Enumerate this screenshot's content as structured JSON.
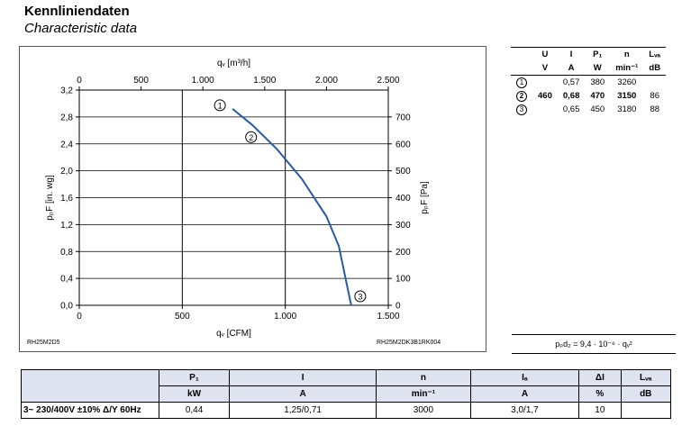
{
  "header": {
    "title": "Kennliniendaten",
    "subtitle": "Characteristic data"
  },
  "chart_data": {
    "type": "line",
    "x_bottom": {
      "label": "qᵥ [CFM]",
      "ticks": [
        "0",
        "500",
        "1.000",
        "1.500"
      ],
      "range": [
        0,
        1500
      ]
    },
    "x_top": {
      "label": "qᵥ [m³/h]",
      "ticks": [
        "0",
        "500",
        "1.000",
        "1.500",
        "2.000",
        "2.500"
      ],
      "range": [
        0,
        2500
      ]
    },
    "y_left": {
      "label": "pₚF [in. wg]",
      "ticks": [
        "0,0",
        "0,4",
        "0,8",
        "1,2",
        "1,6",
        "2,0",
        "2,4",
        "2,8",
        "3,2"
      ],
      "range": [
        0,
        3.2
      ]
    },
    "y_right": {
      "label": "pₚF [Pa]",
      "ticks": [
        "0",
        "100",
        "200",
        "300",
        "400",
        "500",
        "600",
        "700"
      ],
      "range": [
        0,
        800
      ]
    },
    "curve_pa_vs_m3h": [
      [
        1240,
        730
      ],
      [
        1400,
        670
      ],
      [
        1600,
        580
      ],
      [
        1800,
        470
      ],
      [
        2000,
        330
      ],
      [
        2100,
        220
      ],
      [
        2200,
        0
      ]
    ],
    "points": [
      {
        "label": "1",
        "x": 1240,
        "y": 730
      },
      {
        "label": "2",
        "x": 1390,
        "y": 625
      },
      {
        "label": "3",
        "x": 2200,
        "y": 0
      }
    ],
    "grid": true,
    "series_color": "#2a5aa0"
  },
  "codes": {
    "left": "RH25M2D5",
    "right": "RH25M2DK3B1RK004"
  },
  "op_table": {
    "headers": [
      "",
      "U",
      "I",
      "P₁",
      "n",
      "Lᵥₐ"
    ],
    "units": [
      "",
      "V",
      "A",
      "W",
      "min⁻¹",
      "dB"
    ],
    "rows": [
      {
        "point": "1",
        "U": "",
        "I": "0,57",
        "P": "380",
        "n": "3260",
        "L": ""
      },
      {
        "point": "2",
        "U": "460",
        "I": "0,68",
        "P": "470",
        "n": "3150",
        "L": "86"
      },
      {
        "point": "3",
        "U": "",
        "I": "0,65",
        "P": "450",
        "n": "3180",
        "L": "88"
      }
    ]
  },
  "formula": "pₚd₂ = 9,4 · 10⁻⁶ · qᵥ²",
  "bottom_table": {
    "headers": [
      {
        "top": "P₁",
        "unit": "kW"
      },
      {
        "top": "I",
        "unit": "A"
      },
      {
        "top": "n",
        "unit": "min⁻¹"
      },
      {
        "top": "Iₐ",
        "unit": "A"
      },
      {
        "top": "ΔI",
        "unit": "%"
      },
      {
        "top": "Lᵥₐ",
        "unit": "dB"
      }
    ],
    "row_label": "3~ 230/400V ±10% Δ/Y 60Hz",
    "values": [
      "0,44",
      "1,25/0,71",
      "3000",
      "3,0/1,7",
      "10",
      ""
    ]
  }
}
